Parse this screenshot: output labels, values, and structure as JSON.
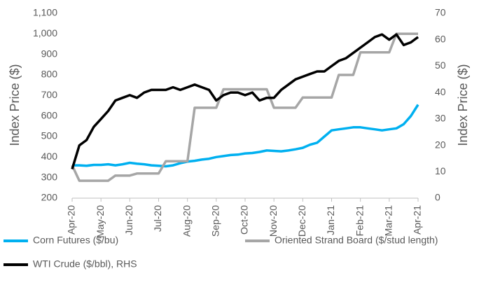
{
  "chart_data": {
    "type": "line",
    "ylabel": "Index Price ($)",
    "y2label": "Index Price ($)",
    "categories": [
      "Apr-20",
      null,
      null,
      null,
      "May-20",
      null,
      null,
      null,
      "Jun-20",
      null,
      null,
      null,
      "Jul-20",
      null,
      null,
      null,
      "Aug-20",
      null,
      null,
      null,
      "Sep-20",
      null,
      null,
      null,
      "Oct-20",
      null,
      null,
      null,
      "Nov-20",
      null,
      null,
      null,
      "Dec-20",
      null,
      null,
      null,
      "Jan-21",
      null,
      null,
      null,
      "Feb-21",
      null,
      null,
      null,
      "Mar-21",
      null,
      null,
      null,
      "Apr-21"
    ],
    "series": [
      {
        "name": "Corn Futures ($/bu)",
        "color": "#00b0f0",
        "values": [
          360,
          360,
          358,
          362,
          362,
          365,
          360,
          365,
          372,
          368,
          365,
          360,
          358,
          355,
          360,
          370,
          378,
          382,
          388,
          392,
          400,
          405,
          410,
          412,
          418,
          420,
          425,
          432,
          430,
          428,
          432,
          438,
          445,
          460,
          470,
          500,
          530,
          535,
          540,
          545,
          545,
          540,
          535,
          530,
          535,
          540,
          560,
          600,
          655
        ]
      },
      {
        "name": "Oriented Strand Board ($/stud length)",
        "color": "#a6a6a6",
        "values": [
          360,
          285,
          285,
          285,
          285,
          285,
          310,
          310,
          310,
          320,
          320,
          320,
          320,
          380,
          380,
          380,
          380,
          640,
          640,
          640,
          640,
          730,
          730,
          730,
          730,
          730,
          730,
          730,
          640,
          640,
          640,
          640,
          690,
          690,
          690,
          690,
          690,
          800,
          800,
          800,
          910,
          910,
          910,
          910,
          910,
          1000,
          1000,
          1000,
          1000
        ]
      },
      {
        "name": "WTI Crude ($/bbl), RHS",
        "color": "#000000",
        "axis": "y2",
        "values": [
          11,
          20,
          22,
          27,
          30,
          33,
          37,
          38,
          39,
          38,
          40,
          41,
          41,
          41,
          42,
          41,
          42,
          43,
          42,
          41,
          37,
          39,
          40,
          40,
          39,
          40,
          37,
          38,
          38,
          41,
          43,
          45,
          46,
          47,
          48,
          48,
          50,
          52,
          53,
          55,
          57,
          59,
          61,
          62,
          60,
          62,
          58,
          59,
          61
        ]
      }
    ],
    "ylim": [
      200,
      1100
    ],
    "yticks": [
      200,
      300,
      400,
      500,
      600,
      700,
      800,
      900,
      {
        "value": 1000,
        "label": "1,000"
      },
      {
        "value": 1100,
        "label": "1,100"
      }
    ],
    "y2lim": [
      0,
      70
    ],
    "y2ticks": [
      0,
      10,
      20,
      30,
      40,
      50,
      60,
      70
    ],
    "grid": false
  }
}
